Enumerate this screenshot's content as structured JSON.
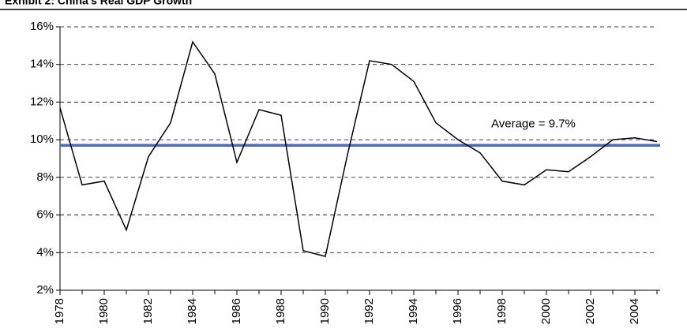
{
  "chart_data": {
    "type": "line",
    "title": "Exhibit 2: China's Real GDP Growth",
    "x": [
      1978,
      1979,
      1980,
      1981,
      1982,
      1983,
      1984,
      1985,
      1986,
      1987,
      1988,
      1989,
      1990,
      1991,
      1992,
      1993,
      1994,
      1995,
      1996,
      1997,
      1998,
      1999,
      2000,
      2001,
      2002,
      2003,
      2004,
      2005
    ],
    "series": [
      {
        "name": "Real GDP Growth",
        "color": "#000000",
        "values": [
          11.7,
          7.6,
          7.8,
          5.2,
          9.1,
          10.9,
          15.2,
          13.5,
          8.8,
          11.6,
          11.3,
          4.1,
          3.8,
          9.2,
          14.2,
          14.0,
          13.1,
          10.9,
          10.0,
          9.3,
          7.8,
          7.6,
          8.4,
          8.3,
          9.1,
          10.0,
          10.1,
          9.9
        ]
      }
    ],
    "average": {
      "value": 9.7,
      "label": "Average = 9.7%",
      "color": "#4a6bb5"
    },
    "xlim": [
      1978,
      2005
    ],
    "xticks": [
      1978,
      1980,
      1982,
      1984,
      1986,
      1988,
      1990,
      1992,
      1994,
      1996,
      1998,
      2000,
      2002,
      2004
    ],
    "ylim": [
      2,
      16
    ],
    "yticks": [
      {
        "value": 2,
        "label": "2%"
      },
      {
        "value": 4,
        "label": "4%"
      },
      {
        "value": 6,
        "label": "6%"
      },
      {
        "value": 8,
        "label": "8%"
      },
      {
        "value": 10,
        "label": "10%"
      },
      {
        "value": 12,
        "label": "12%"
      },
      {
        "value": 14,
        "label": "14%"
      },
      {
        "value": 16,
        "label": "16%"
      }
    ],
    "grid": true
  }
}
